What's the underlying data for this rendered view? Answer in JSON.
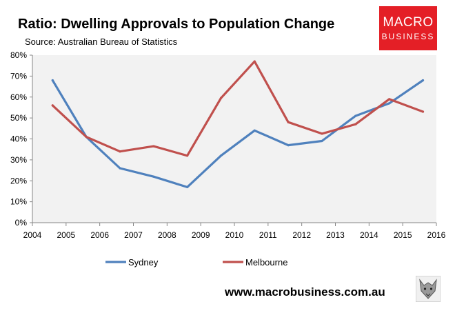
{
  "header": {
    "title": "Ratio: Dwelling Approvals to Population Change",
    "source": "Source: Australian Bureau of Statistics"
  },
  "logo": {
    "line1": "MACRO",
    "line2": "BUSINESS"
  },
  "footer": {
    "url": "www.macrobusiness.com.au"
  },
  "colors": {
    "sydney": "#4f81bd",
    "melbourne": "#c0504d",
    "logo_bg": "#e41f26",
    "plot_bg": "#f2f2f2"
  },
  "chart_data": {
    "type": "line",
    "title": "Ratio: Dwelling Approvals to Population Change",
    "subtitle": "Source: Australian Bureau of Statistics",
    "x_ticks": [
      "2004",
      "2005",
      "2006",
      "2007",
      "2008",
      "2009",
      "2010",
      "2011",
      "2012",
      "2013",
      "2014",
      "2015",
      "2016"
    ],
    "y_ticks": [
      "0%",
      "10%",
      "20%",
      "30%",
      "40%",
      "50%",
      "60%",
      "70%",
      "80%"
    ],
    "xlim": [
      2004,
      2016
    ],
    "ylim": [
      0,
      80
    ],
    "grid": "none",
    "legend_position": "bottom",
    "x": [
      2004.6,
      2005.6,
      2006.6,
      2007.6,
      2008.6,
      2009.6,
      2010.6,
      2011.6,
      2012.6,
      2013.6,
      2014.6,
      2015.6
    ],
    "series": [
      {
        "name": "Sydney",
        "values": [
          68,
          41,
          26,
          22,
          17,
          32,
          44,
          37,
          39,
          51,
          57,
          68
        ]
      },
      {
        "name": "Melbourne",
        "values": [
          56,
          41,
          34,
          36.5,
          32,
          59.5,
          77,
          48,
          42.5,
          47,
          59,
          53
        ]
      }
    ]
  }
}
